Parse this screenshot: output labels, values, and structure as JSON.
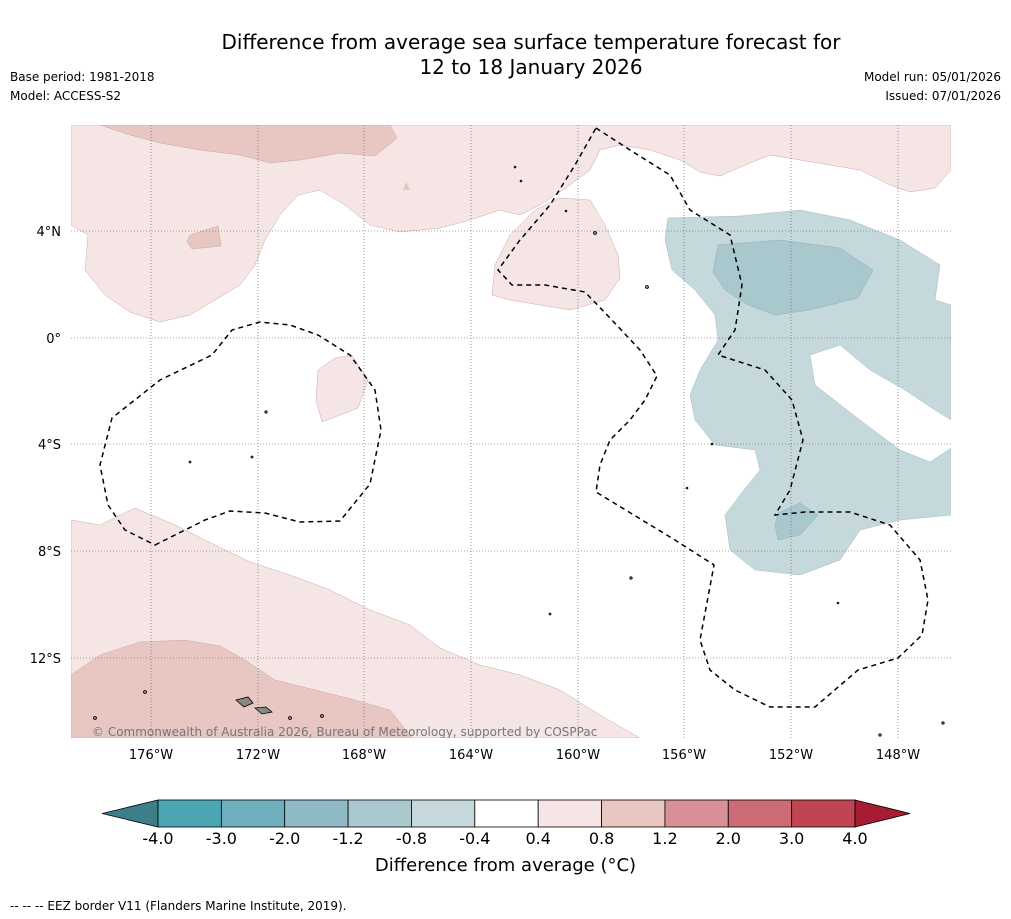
{
  "title": {
    "line1": "Difference from average sea surface temperature forecast for",
    "line2": "12 to 18 January 2026"
  },
  "meta": {
    "base_period": "Base period: 1981-2018",
    "model": "Model: ACCESS-S2",
    "model_run": "Model run: 05/01/2026",
    "issued": "Issued: 07/01/2026"
  },
  "map": {
    "lat_labels": [
      "4°N",
      "0°",
      "4°S",
      "8°S",
      "12°S"
    ],
    "lon_labels": [
      "176°W",
      "172°W",
      "168°W",
      "164°W",
      "160°W",
      "156°W",
      "152°W",
      "148°W"
    ],
    "copyright": "© Commonwealth of Australia 2026, Bureau of Meteorology, supported by COSPPac",
    "colors": {
      "warm_light": "#f5e6e5",
      "warm_mid": "#e8c6c1",
      "cool_light": "#c5d8dc",
      "cool_mid": "#a9c8cd",
      "land": "#888888"
    }
  },
  "colorbar": {
    "ticks": [
      "-4.0",
      "-3.0",
      "-2.0",
      "-1.2",
      "-0.8",
      "-0.4",
      "0.4",
      "0.8",
      "1.2",
      "2.0",
      "3.0",
      "4.0"
    ],
    "bins": [
      "#4ba5b3",
      "#6eaebd",
      "#8fbac5",
      "#aac9ce",
      "#c5d8dc",
      "#ffffff",
      "#f5e6e5",
      "#e8c6c1",
      "#d79196",
      "#cc6a75",
      "#c04553"
    ],
    "under_color": "#3d7f88",
    "over_color": "#a91b32",
    "label": "Difference from average (°C)"
  },
  "footnote": "--  --  -- EEZ border V11 (Flanders Marine Institute, 2019)."
}
